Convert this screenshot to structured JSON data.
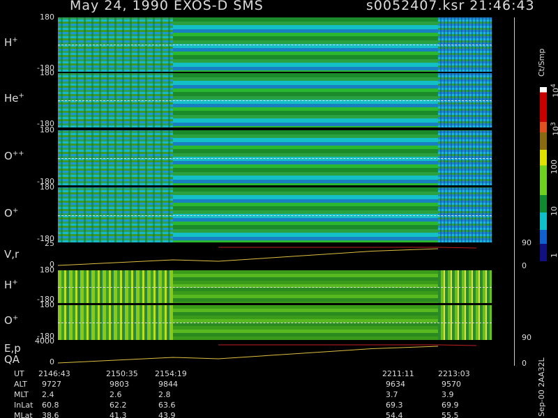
{
  "header": {
    "left": "May 24, 1990   EXOS-D SMS",
    "right": "s0052407.ksr  21:46:43"
  },
  "panels": [
    {
      "base": "H",
      "sup": "+",
      "top": "180",
      "bottom": "-180"
    },
    {
      "base": "He",
      "sup": "+",
      "top": "180",
      "bottom": "-180"
    },
    {
      "base": "O",
      "sup": "++",
      "top": "180",
      "bottom": "-180"
    },
    {
      "base": "O",
      "sup": "+",
      "top": "180",
      "bottom": "-180"
    },
    {
      "base": "V,r",
      "top": "25",
      "bottom": "0",
      "right_top": "90",
      "right_bottom": "0"
    },
    {
      "base": "H",
      "sup": "+",
      "top": "180",
      "bottom": "-180"
    },
    {
      "base": "O",
      "sup": "+",
      "top": "180",
      "bottom": "-180",
      "right_bottom": "90"
    },
    {
      "base": "E,p",
      "base2": "QA",
      "top": "4000",
      "bottom": "0",
      "right_bottom": "0"
    }
  ],
  "colorbar": {
    "unit": "Ct/Smp",
    "labels": [
      {
        "base": "10",
        "sup": "4"
      },
      {
        "base": "10",
        "sup": "3"
      },
      {
        "base": "100"
      },
      {
        "base": "10"
      },
      {
        "base": "1"
      }
    ]
  },
  "footer": {
    "row_labels": [
      "UT",
      "ALT",
      "MLT",
      "InLat",
      "MLat"
    ],
    "columns": [
      [
        "2146:43",
        "9727",
        "2.4",
        "60.8",
        "38.6"
      ],
      [
        "2150:35",
        "9803",
        "2.6",
        "62.2",
        "41.3"
      ],
      [
        "2154:19",
        "9844",
        "2.8",
        "63.6",
        "43.9"
      ],
      [
        "2211:11",
        "9634",
        "3.7",
        "69.3",
        "54.4"
      ],
      [
        "2213:03",
        "9570",
        "3.9",
        "69.9",
        "55.5"
      ]
    ]
  },
  "stamp": "Sep-00  2AA32L"
}
